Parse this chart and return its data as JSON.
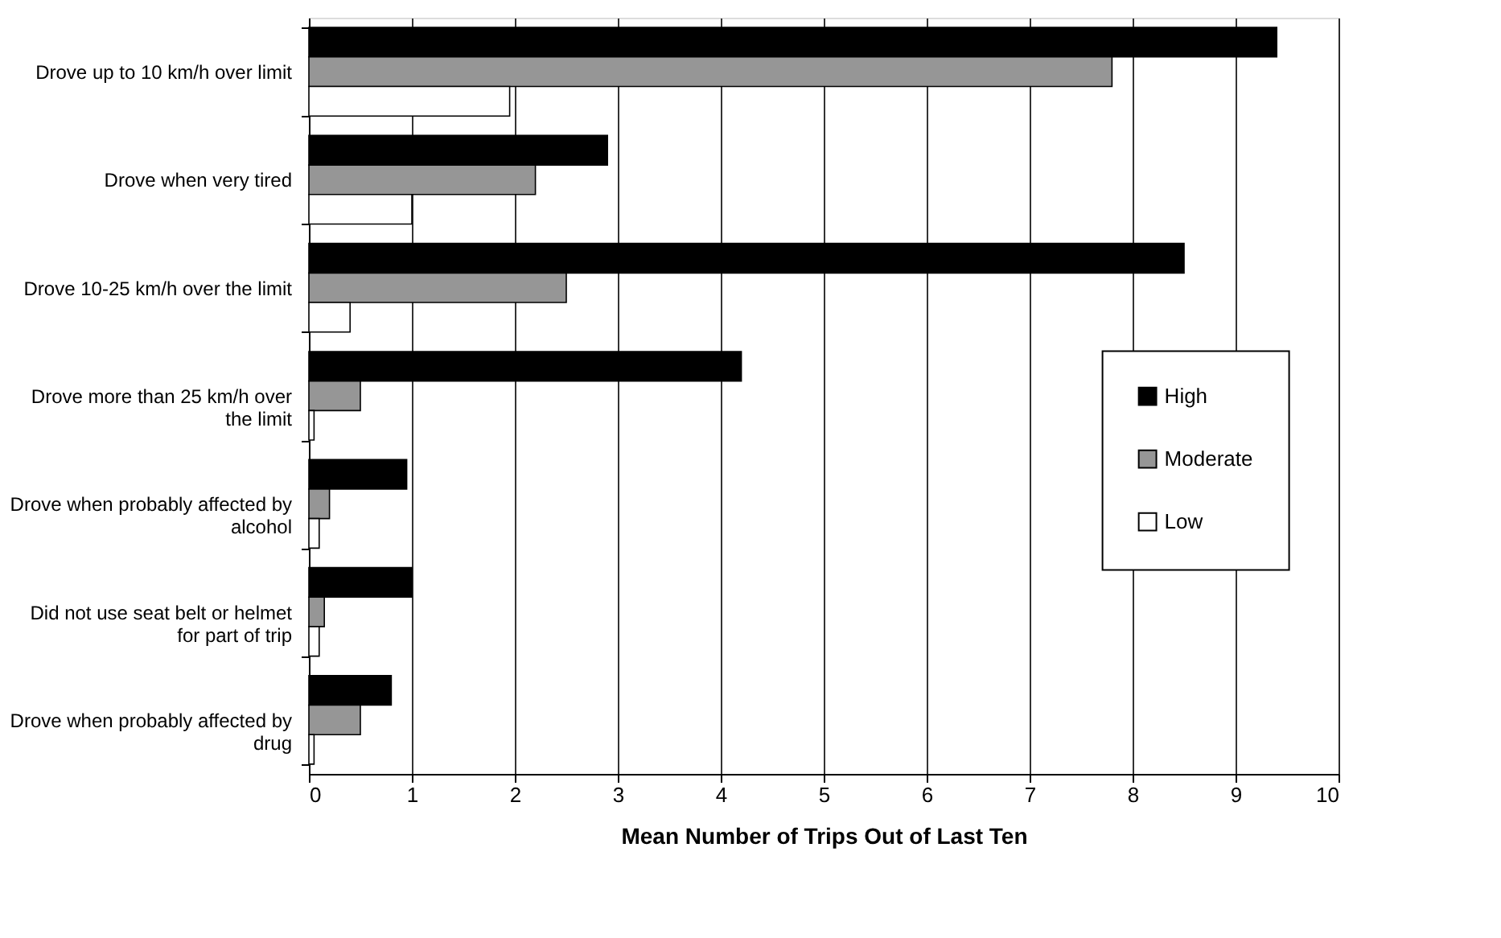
{
  "chart_data": {
    "type": "bar",
    "orientation": "horizontal",
    "xlabel": "Mean Number of Trips Out of Last Ten",
    "categories": [
      "Drove up to 10 km/h over limit",
      "Drove when very tired",
      "Drove 10-25 km/h over the limit",
      "Drove more than 25 km/h over the limit",
      "Drove when probably affected by alcohol",
      "Did not use seat belt or helmet for part of trip",
      "Drove when probably affected by drug"
    ],
    "series": [
      {
        "name": "High",
        "color": "#000000",
        "values": [
          9.4,
          2.9,
          8.5,
          4.2,
          0.95,
          1.0,
          0.8
        ]
      },
      {
        "name": "Moderate",
        "color": "#969696",
        "values": [
          7.8,
          2.2,
          2.5,
          0.5,
          0.2,
          0.15,
          0.5
        ]
      },
      {
        "name": "Low",
        "color": "#ffffff",
        "values": [
          1.95,
          1.0,
          0.4,
          0.05,
          0.1,
          0.1,
          0.05
        ]
      }
    ],
    "xlim": [
      0,
      10
    ],
    "xticks": [
      0,
      1,
      2,
      3,
      4,
      5,
      6,
      7,
      8,
      9,
      10
    ],
    "grid": "x",
    "legend": "right"
  }
}
